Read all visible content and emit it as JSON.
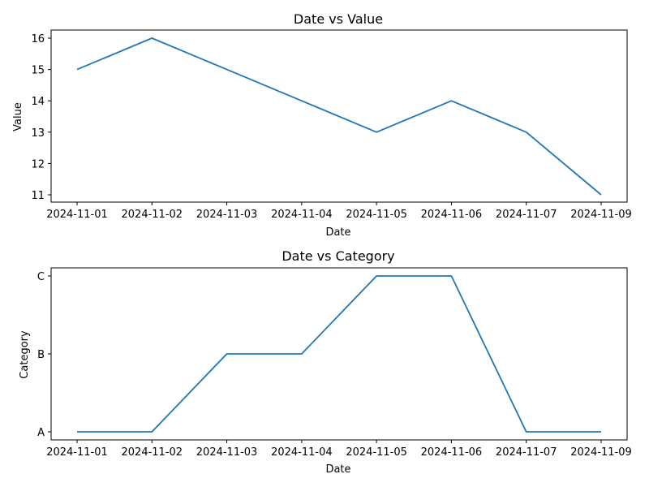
{
  "chart_data": [
    {
      "type": "line",
      "title": "Date vs Value",
      "xlabel": "Date",
      "ylabel": "Value",
      "x_ticks": [
        "2024-11-01",
        "2024-11-02",
        "2024-11-03",
        "2024-11-04",
        "2024-11-05",
        "2024-11-06",
        "2024-11-07",
        "2024-11-09"
      ],
      "y_ticks": [
        "11",
        "12",
        "13",
        "14",
        "15",
        "16"
      ],
      "ylim": [
        10.75,
        16.25
      ],
      "x": [
        "2024-11-01",
        "2024-11-02",
        "2024-11-03",
        "2024-11-04",
        "2024-11-05",
        "2024-11-06",
        "2024-11-07",
        "2024-11-09"
      ],
      "series": [
        {
          "values": [
            15,
            16,
            15,
            14,
            13,
            14,
            13,
            11
          ],
          "color": "#1f77b4"
        }
      ],
      "grid": false
    },
    {
      "type": "line",
      "title": "Date vs Category",
      "xlabel": "Date",
      "ylabel": "Category",
      "x_ticks": [
        "2024-11-01",
        "2024-11-02",
        "2024-11-03",
        "2024-11-04",
        "2024-11-05",
        "2024-11-06",
        "2024-11-07",
        "2024-11-09"
      ],
      "y_ticks": [
        "A",
        "B",
        "C"
      ],
      "y_categories": [
        "A",
        "B",
        "C"
      ],
      "x": [
        "2024-11-01",
        "2024-11-02",
        "2024-11-03",
        "2024-11-04",
        "2024-11-05",
        "2024-11-06",
        "2024-11-07",
        "2024-11-09"
      ],
      "series": [
        {
          "values": [
            "A",
            "A",
            "B",
            "B",
            "C",
            "C",
            "A",
            "A"
          ],
          "color": "#1f77b4"
        }
      ],
      "grid": false
    }
  ]
}
